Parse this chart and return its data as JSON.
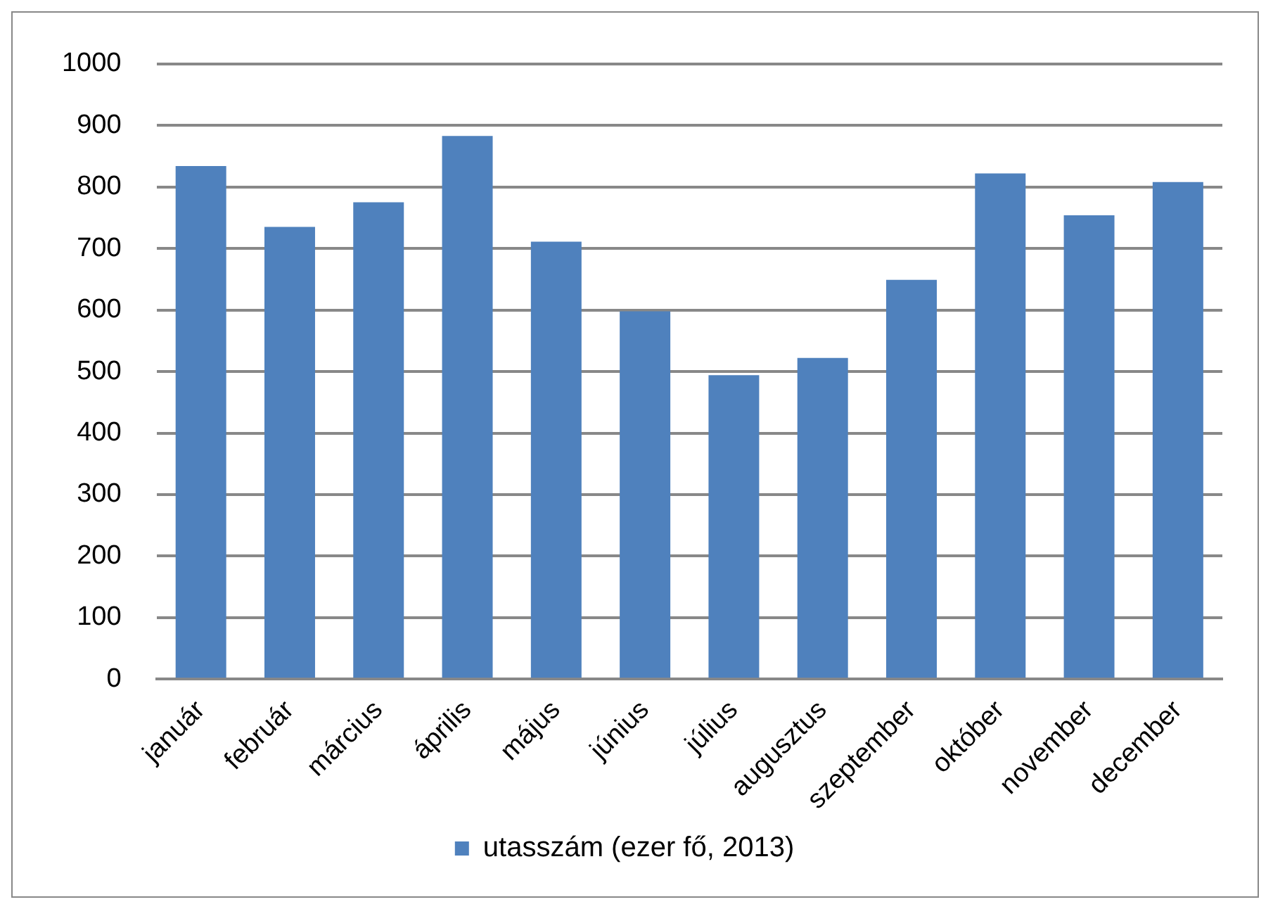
{
  "chart_data": {
    "type": "bar",
    "categories": [
      "január",
      "február",
      "március",
      "április",
      "május",
      "június",
      "július",
      "augusztus",
      "szeptember",
      "október",
      "november",
      "december"
    ],
    "series": [
      {
        "name": "utasszám (ezer fő, 2013)",
        "color": "#4f81bd",
        "values": [
          834,
          735,
          775,
          883,
          711,
          598,
          494,
          522,
          649,
          822,
          754,
          808
        ]
      }
    ],
    "ylim": [
      0,
      1000
    ],
    "yticks": [
      0,
      100,
      200,
      300,
      400,
      500,
      600,
      700,
      800,
      900,
      1000
    ],
    "grid": "y",
    "legend": "bottom"
  }
}
